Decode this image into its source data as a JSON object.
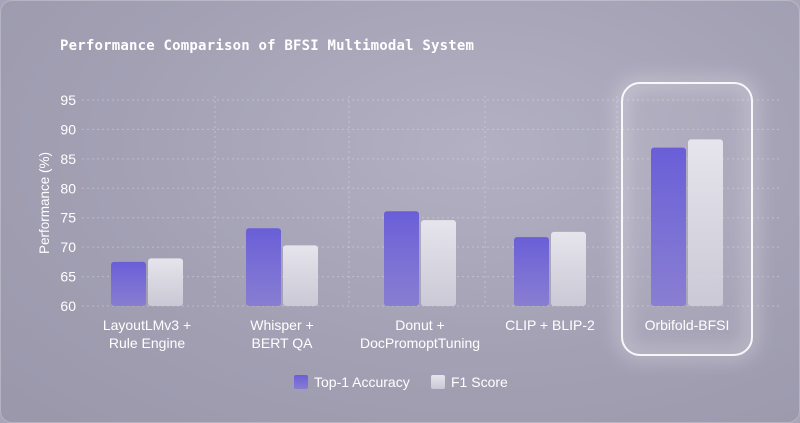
{
  "colors": {
    "accuracy": "#6b5fd6",
    "f1": "#dedde4",
    "text": "#ffffff",
    "grid": "#ffffff"
  },
  "chart_data": {
    "type": "bar",
    "title": "Performance Comparison of BFSI Multimodal System",
    "xlabel": "",
    "ylabel": "Performance (%)",
    "ylim": [
      60,
      95
    ],
    "yticks": [
      60,
      65,
      70,
      75,
      80,
      85,
      90,
      95
    ],
    "grid": true,
    "legend_position": "bottom-center",
    "highlighted_category": "Orbifold-BFSI",
    "categories": [
      [
        "LayoutLMv3 +",
        "Rule Engine"
      ],
      [
        "Whisper +",
        "BERT QA"
      ],
      [
        "Donut +",
        "DocPromoptTuning"
      ],
      [
        "CLIP + BLIP-2"
      ],
      [
        "Orbifold-BFSI"
      ]
    ],
    "series": [
      {
        "name": "Top-1 Accuracy",
        "values": [
          67.5,
          73.2,
          76.1,
          71.7,
          86.9
        ]
      },
      {
        "name": "F1 Score",
        "values": [
          68.1,
          70.3,
          74.6,
          72.6,
          88.3
        ]
      }
    ]
  }
}
